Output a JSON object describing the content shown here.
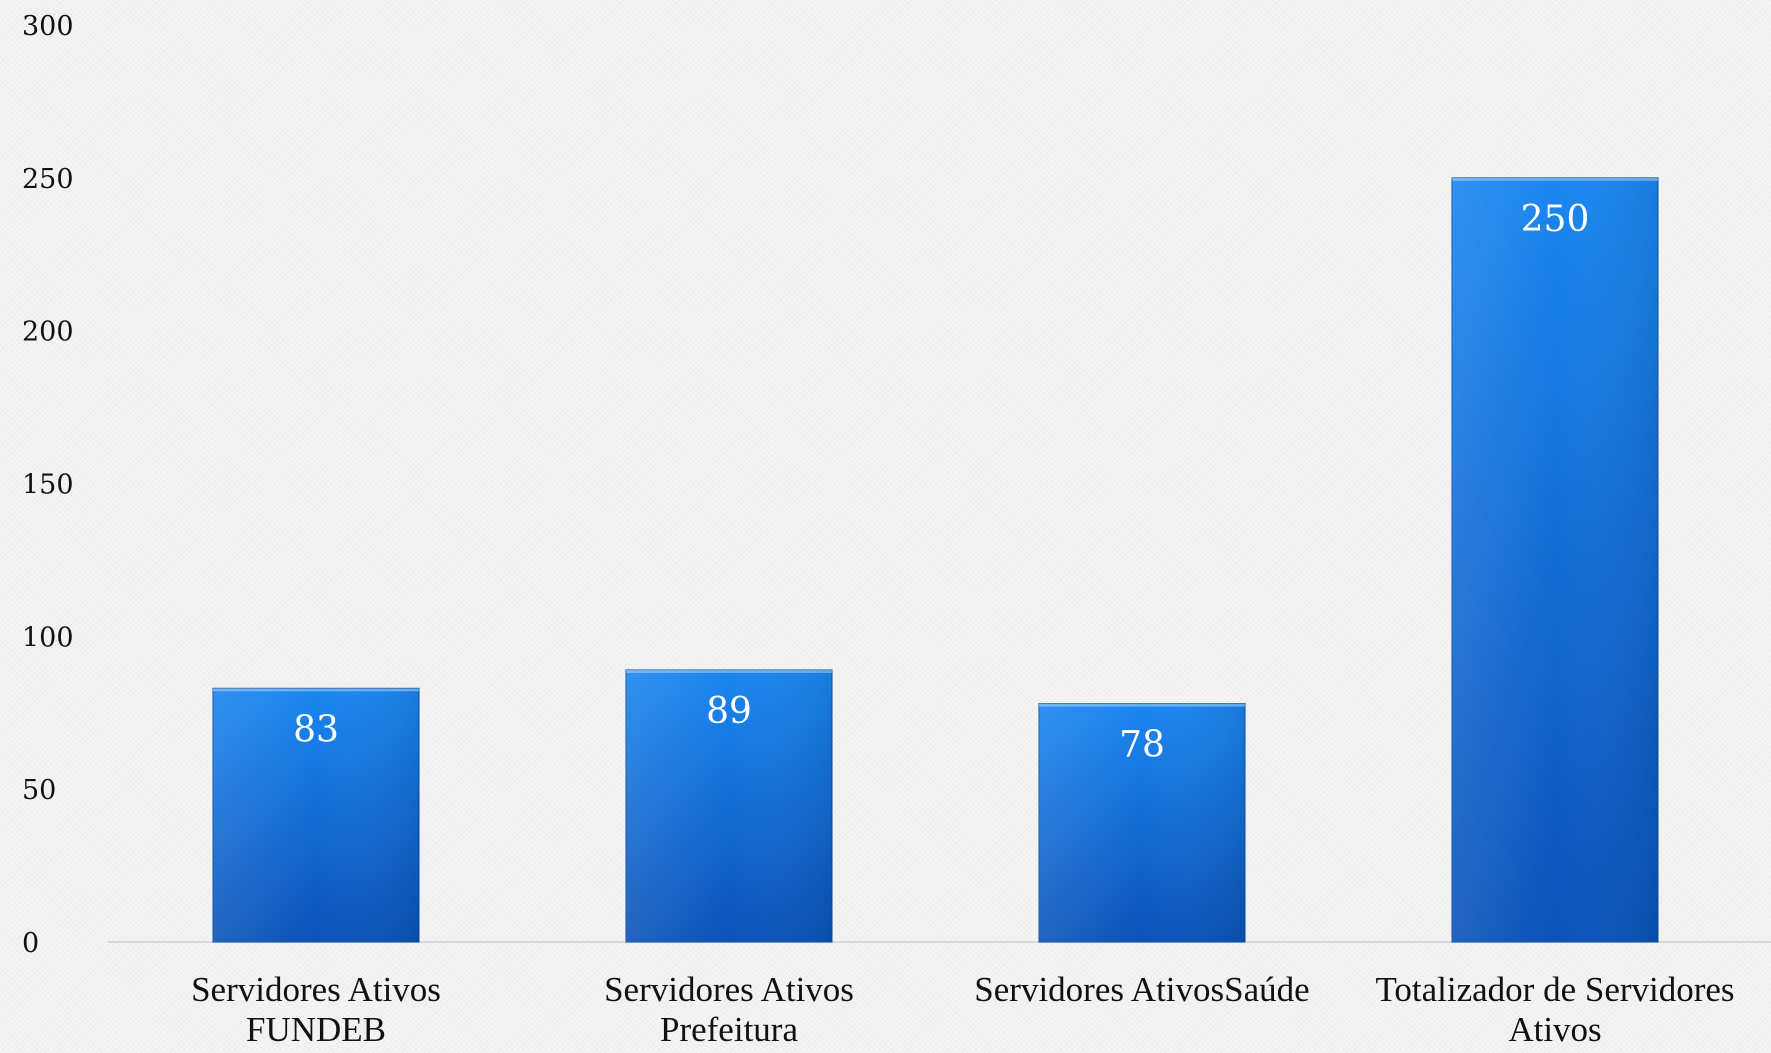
{
  "chart_data": {
    "type": "bar",
    "categories": [
      [
        "Servidores Ativos",
        "FUNDEB"
      ],
      [
        "Servidores Ativos",
        "Prefeitura"
      ],
      [
        "Servidores AtivosSaúde"
      ],
      [
        "Totalizador de Servidores",
        "Ativos"
      ]
    ],
    "values": [
      83,
      89,
      78,
      250
    ],
    "data_labels": [
      "83",
      "89",
      "78",
      "250"
    ],
    "yticks": [
      "0",
      "50",
      "100",
      "150",
      "200",
      "250",
      "300"
    ],
    "ylim": [
      0,
      300
    ],
    "grid": false,
    "legend": "none",
    "colors": {
      "bar_top": "#1a86f0",
      "bar_bottom": "#0a52b8",
      "bar_edge": "#0a4fa3",
      "text": "#111111",
      "data_label": "#ffffff"
    }
  }
}
